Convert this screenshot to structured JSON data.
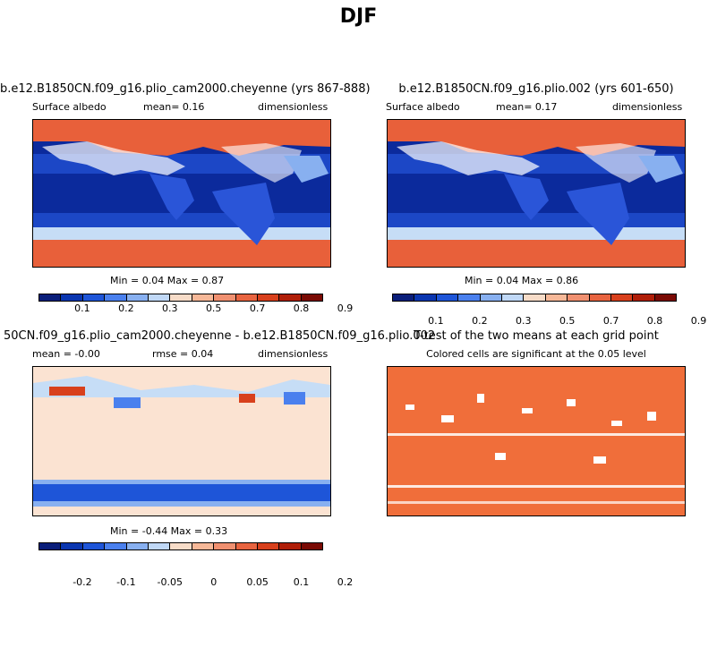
{
  "title": "DJF",
  "panels": {
    "p1": {
      "title": "b.e12.B1850CN.f09_g16.plio_cam2000.cheyenne (yrs 867-888)",
      "left_text": "Surface albedo",
      "mid_text": "mean=   0.16",
      "right_text": "dimensionless",
      "minmax": "Min =   0.04 Max =   0.87"
    },
    "p2": {
      "title": "b.e12.B1850CN.f09_g16.plio.002 (yrs 601-650)",
      "left_text": "Surface albedo",
      "mid_text": "mean=   0.17",
      "right_text": "dimensionless",
      "minmax": "Min =   0.04 Max =   0.86"
    },
    "p3": {
      "title": "50CN.f09_g16.plio_cam2000.cheyenne - b.e12.B1850CN.f09_g16.plio.002",
      "left_text": "mean =  -0.00",
      "mid_text": "rmse =   0.04",
      "right_text": "dimensionless",
      "minmax": "Min =  -0.44 Max =   0.33"
    },
    "p4": {
      "title": "T-test of the two means at each grid point",
      "subtitle": "Colored cells are significant at the 0.05 level"
    }
  },
  "colorbar_abs": {
    "colors": [
      "#0a1e7a",
      "#0a36b0",
      "#1e55d8",
      "#4a80ee",
      "#88b0f0",
      "#c0d8f6",
      "#f7dcc8",
      "#f6b898",
      "#f09070",
      "#e86440",
      "#d8401c",
      "#b01e08",
      "#7a0a04"
    ],
    "labels": [
      "0.1",
      "0.2",
      "0.3",
      "0.5",
      "0.7",
      "0.8",
      "0.9"
    ]
  },
  "colorbar_diff": {
    "colors": [
      "#0a1e7a",
      "#0a36b0",
      "#1e55d8",
      "#4a80ee",
      "#88b0f0",
      "#c0d8f6",
      "#f7dcc8",
      "#f6b898",
      "#f09070",
      "#e86440",
      "#d8401c",
      "#b01e08",
      "#7a0a04"
    ],
    "labels": [
      "-0.2",
      "-0.1",
      "-0.05",
      "0",
      "0.05",
      "0.1",
      "0.2"
    ]
  },
  "colors": {
    "ocean_deep": "#0b2a9c",
    "ice": "#e8603a",
    "ttest_fill": "#f06e3a",
    "diff_bg": "#fbe3d2"
  }
}
